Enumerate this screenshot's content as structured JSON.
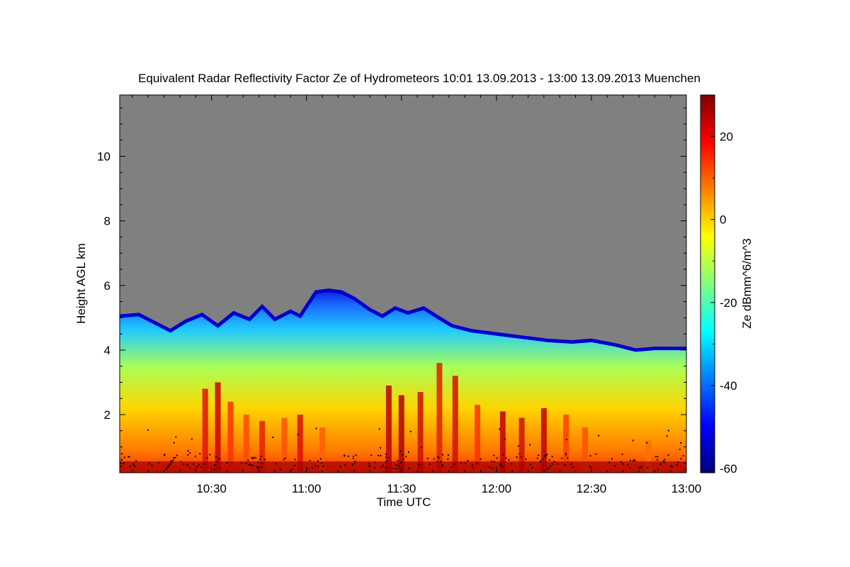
{
  "chart_data": {
    "type": "heatmap",
    "title": "Equivalent Radar Reflectivity Factor Ze of Hydrometeors   10:01 13.09.2013 - 13:00 13.09.2013 Muenchen",
    "xlabel": "Time UTC",
    "ylabel": "Height AGL km",
    "colorbar_label": "Ze dBmm^6/m^3",
    "x_range_minutes": [
      601,
      780
    ],
    "y_range_km": [
      0.2,
      11.9
    ],
    "x_ticks": [
      {
        "minutes": 630,
        "label": "10:30"
      },
      {
        "minutes": 660,
        "label": "11:00"
      },
      {
        "minutes": 690,
        "label": "11:30"
      },
      {
        "minutes": 720,
        "label": "12:00"
      },
      {
        "minutes": 750,
        "label": "12:30"
      },
      {
        "minutes": 780,
        "label": "13:00"
      }
    ],
    "y_ticks": [
      {
        "value": 2,
        "label": "2"
      },
      {
        "value": 4,
        "label": "4"
      },
      {
        "value": 6,
        "label": "6"
      },
      {
        "value": 8,
        "label": "8"
      },
      {
        "value": 10,
        "label": "10"
      }
    ],
    "colorbar_range": [
      -61,
      30
    ],
    "colorbar_ticks": [
      {
        "value": 20,
        "label": "20"
      },
      {
        "value": 0,
        "label": "0"
      },
      {
        "value": -20,
        "label": "-20"
      },
      {
        "value": -40,
        "label": "-40"
      },
      {
        "value": -60,
        "label": "-60"
      }
    ],
    "colormap": [
      "#00007f",
      "#0000ff",
      "#007fff",
      "#00ffff",
      "#7fff7f",
      "#ffff00",
      "#ff7f00",
      "#ff0000",
      "#7f0000"
    ],
    "no_signal_color": "#808080",
    "echo_top_km": [
      {
        "t": 601,
        "h": 5.05
      },
      {
        "t": 607,
        "h": 5.1
      },
      {
        "t": 612,
        "h": 4.85
      },
      {
        "t": 617,
        "h": 4.6
      },
      {
        "t": 622,
        "h": 4.9
      },
      {
        "t": 627,
        "h": 5.1
      },
      {
        "t": 632,
        "h": 4.75
      },
      {
        "t": 637,
        "h": 5.15
      },
      {
        "t": 642,
        "h": 4.95
      },
      {
        "t": 646,
        "h": 5.35
      },
      {
        "t": 650,
        "h": 4.95
      },
      {
        "t": 655,
        "h": 5.2
      },
      {
        "t": 658,
        "h": 5.05
      },
      {
        "t": 660,
        "h": 5.35
      },
      {
        "t": 663,
        "h": 5.8
      },
      {
        "t": 667,
        "h": 5.85
      },
      {
        "t": 671,
        "h": 5.8
      },
      {
        "t": 675,
        "h": 5.6
      },
      {
        "t": 680,
        "h": 5.25
      },
      {
        "t": 684,
        "h": 5.05
      },
      {
        "t": 688,
        "h": 5.3
      },
      {
        "t": 692,
        "h": 5.15
      },
      {
        "t": 697,
        "h": 5.3
      },
      {
        "t": 701,
        "h": 5.05
      },
      {
        "t": 706,
        "h": 4.75
      },
      {
        "t": 712,
        "h": 4.6
      },
      {
        "t": 720,
        "h": 4.5
      },
      {
        "t": 728,
        "h": 4.4
      },
      {
        "t": 736,
        "h": 4.3
      },
      {
        "t": 744,
        "h": 4.25
      },
      {
        "t": 750,
        "h": 4.3
      },
      {
        "t": 758,
        "h": 4.15
      },
      {
        "t": 764,
        "h": 4.0
      },
      {
        "t": 770,
        "h": 4.05
      },
      {
        "t": 780,
        "h": 4.05
      }
    ]
  }
}
